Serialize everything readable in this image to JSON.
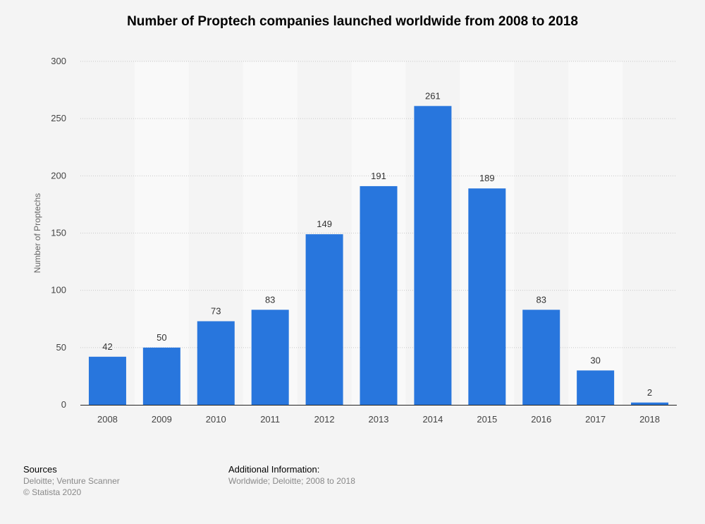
{
  "title": "Number of Proptech companies launched worldwide from 2008 to 2018",
  "chart_data": {
    "type": "bar",
    "title": "Number of Proptech companies launched worldwide from 2008 to 2018",
    "xlabel": "",
    "ylabel": "Number of Proptechs",
    "categories": [
      "2008",
      "2009",
      "2010",
      "2011",
      "2012",
      "2013",
      "2014",
      "2015",
      "2016",
      "2017",
      "2018"
    ],
    "values": [
      42,
      50,
      73,
      83,
      149,
      191,
      261,
      189,
      83,
      30,
      2
    ],
    "ylim": [
      0,
      300
    ],
    "yticks": [
      0,
      50,
      100,
      150,
      200,
      250,
      300
    ],
    "grid": true,
    "bar_color": "#2876dd",
    "alt_band_color": "#f9f9f9",
    "background_color": "#f4f4f4"
  },
  "footer": {
    "sources_heading": "Sources",
    "sources_line1": "Deloitte; Venture Scanner",
    "sources_line2": "© Statista 2020",
    "additional_heading": "Additional Information:",
    "additional_line1": "Worldwide; Deloitte; 2008 to 2018"
  }
}
